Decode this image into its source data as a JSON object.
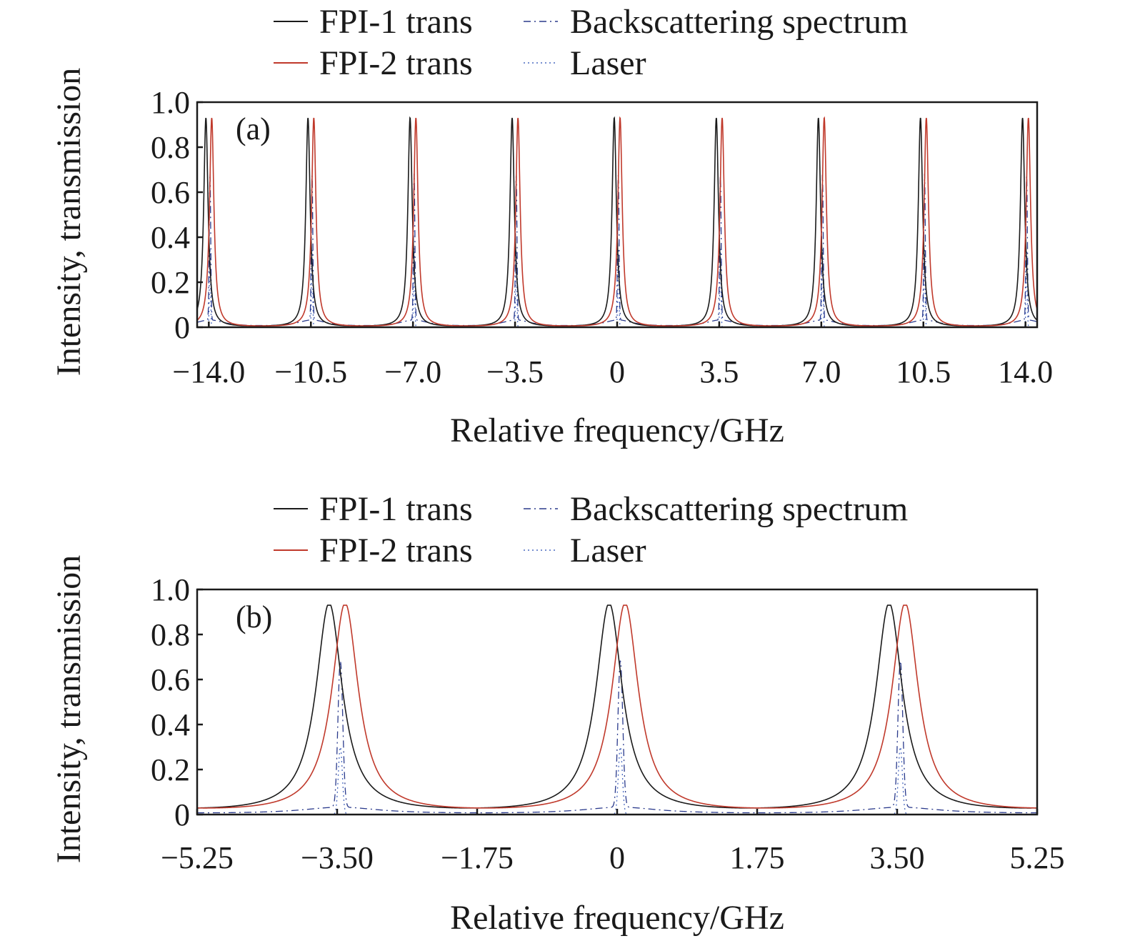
{
  "chart_data": [
    {
      "type": "line",
      "panel_label": "(a)",
      "xlabel": "Relative frequency/GHz",
      "ylabel": "Intensity, transmission",
      "xlim": [
        -14.4,
        14.4
      ],
      "ylim": [
        0,
        1.0
      ],
      "xticks": [
        -14.0,
        -10.5,
        -7.0,
        -3.5,
        0,
        3.5,
        7.0,
        10.5,
        14.0
      ],
      "xtick_labels": [
        "−14.0",
        "−10.5",
        "−7.0",
        "−3.5",
        "0",
        "3.5",
        "7.0",
        "10.5",
        "14.0"
      ],
      "yticks": [
        0,
        0.2,
        0.4,
        0.6,
        0.8,
        1.0
      ],
      "ytick_labels": [
        "0",
        "0.2",
        "0.4",
        "0.6",
        "0.8",
        "1.0"
      ],
      "legend_position": "top",
      "series": [
        {
          "name": "FPI-1 trans",
          "color": "#1a1a1a",
          "style": "solid",
          "model": "airy",
          "peak": 0.93,
          "fsr": 3.5,
          "hwhm": 0.09,
          "offset": -0.1
        },
        {
          "name": "FPI-2 trans",
          "color": "#c0392b",
          "style": "solid",
          "model": "airy",
          "peak": 0.93,
          "fsr": 3.5,
          "hwhm": 0.09,
          "offset": 0.1
        },
        {
          "name": "Backscattering spectrum",
          "color": "#2a3a8c",
          "style": "dashdot",
          "model": "backscatter",
          "peak": 0.65,
          "fsr": 3.5,
          "hwhm": 0.025,
          "offset": 0.04,
          "broad_peak": 0.03,
          "broad_hwhm": 0.6
        },
        {
          "name": "Laser",
          "color": "#4a6ac0",
          "style": "dotted",
          "model": "gauss",
          "peak": 0.35,
          "fsr": 3.5,
          "sigma": 0.02,
          "offset": 0.04
        }
      ]
    },
    {
      "type": "line",
      "panel_label": "(b)",
      "xlabel": "Relative frequency/GHz",
      "ylabel": "Intensity, transmission",
      "xlim": [
        -5.25,
        5.25
      ],
      "ylim": [
        0,
        1.0
      ],
      "xticks": [
        -5.25,
        -3.5,
        -1.75,
        0,
        1.75,
        3.5,
        5.25
      ],
      "xtick_labels": [
        "−5.25",
        "−3.50",
        "−1.75",
        "0",
        "1.75",
        "3.50",
        "5.25"
      ],
      "yticks": [
        0,
        0.2,
        0.4,
        0.6,
        0.8,
        1.0
      ],
      "ytick_labels": [
        "0",
        "0.2",
        "0.4",
        "0.6",
        "0.8",
        "1.0"
      ],
      "legend_position": "top",
      "series": [
        {
          "name": "FPI-1 trans",
          "color": "#1a1a1a",
          "style": "solid",
          "model": "airy",
          "peak": 0.93,
          "fsr": 3.5,
          "hwhm": 0.2,
          "offset": -0.1
        },
        {
          "name": "FPI-2 trans",
          "color": "#c0392b",
          "style": "solid",
          "model": "airy",
          "peak": 0.93,
          "fsr": 3.5,
          "hwhm": 0.2,
          "offset": 0.1
        },
        {
          "name": "Backscattering spectrum",
          "color": "#2a3a8c",
          "style": "dashdot",
          "model": "backscatter",
          "peak": 0.65,
          "fsr": 3.5,
          "hwhm": 0.03,
          "offset": 0.04,
          "broad_peak": 0.03,
          "broad_hwhm": 0.6
        },
        {
          "name": "Laser",
          "color": "#4a6ac0",
          "style": "dotted",
          "model": "gauss",
          "peak": 0.3,
          "fsr": 3.5,
          "sigma": 0.025,
          "offset": 0.04
        }
      ]
    }
  ]
}
